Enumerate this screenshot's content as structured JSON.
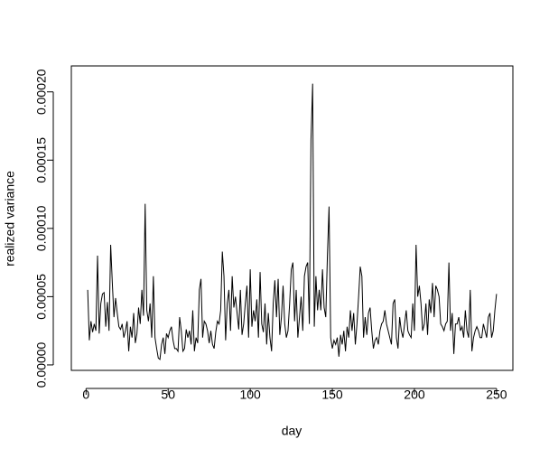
{
  "chart_data": {
    "type": "line",
    "xlabel": "day",
    "ylabel": "realized variance",
    "color": "#000000",
    "xlim": [
      -8.96,
      259.96
    ],
    "ylim": [
      -4e-06,
      0.000219
    ],
    "xticks": [
      0,
      50,
      100,
      150,
      200,
      250
    ],
    "yticks": [
      {
        "value": 0,
        "label": "0.00000"
      },
      {
        "value": 5e-05,
        "label": "0.00005"
      },
      {
        "value": 0.0001,
        "label": "0.00010"
      },
      {
        "value": 0.00015,
        "label": "0.00015"
      },
      {
        "value": 0.0002,
        "label": "0.00020"
      }
    ],
    "x": [
      1,
      2,
      3,
      4,
      5,
      6,
      7,
      8,
      9,
      10,
      11,
      12,
      13,
      14,
      15,
      16,
      17,
      18,
      19,
      20,
      21,
      22,
      23,
      24,
      25,
      26,
      27,
      28,
      29,
      30,
      31,
      32,
      33,
      34,
      35,
      36,
      37,
      38,
      39,
      40,
      41,
      42,
      43,
      44,
      45,
      46,
      47,
      48,
      49,
      50,
      51,
      52,
      53,
      54,
      55,
      56,
      57,
      58,
      59,
      60,
      61,
      62,
      63,
      64,
      65,
      66,
      67,
      68,
      69,
      70,
      71,
      72,
      73,
      74,
      75,
      76,
      77,
      78,
      79,
      80,
      81,
      82,
      83,
      84,
      85,
      86,
      87,
      88,
      89,
      90,
      91,
      92,
      93,
      94,
      95,
      96,
      97,
      98,
      99,
      100,
      101,
      102,
      103,
      104,
      105,
      106,
      107,
      108,
      109,
      110,
      111,
      112,
      113,
      114,
      115,
      116,
      117,
      118,
      119,
      120,
      121,
      122,
      123,
      124,
      125,
      126,
      127,
      128,
      129,
      130,
      131,
      132,
      133,
      134,
      135,
      136,
      137,
      138,
      139,
      140,
      141,
      142,
      143,
      144,
      145,
      146,
      147,
      148,
      149,
      150,
      151,
      152,
      153,
      154,
      155,
      156,
      157,
      158,
      159,
      160,
      161,
      162,
      163,
      164,
      165,
      166,
      167,
      168,
      169,
      170,
      171,
      172,
      173,
      174,
      175,
      176,
      177,
      178,
      179,
      180,
      181,
      182,
      183,
      184,
      185,
      186,
      187,
      188,
      189,
      190,
      191,
      192,
      193,
      194,
      195,
      196,
      197,
      198,
      199,
      200,
      201,
      202,
      203,
      204,
      205,
      206,
      207,
      208,
      209,
      210,
      211,
      212,
      213,
      214,
      215,
      216,
      217,
      218,
      219,
      220,
      221,
      222,
      223,
      224,
      225,
      226,
      227,
      228,
      229,
      230,
      231,
      232,
      233,
      234,
      235,
      236,
      237,
      238,
      239,
      240,
      241,
      242,
      243,
      244,
      245,
      246,
      247,
      248,
      249,
      250
    ],
    "values": [
      5.5e-05,
      1.8e-05,
      3.2e-05,
      2.4e-05,
      3e-05,
      2.5e-05,
      8e-05,
      2.3e-05,
      4.5e-05,
      5.2e-05,
      5.3e-05,
      2.8e-05,
      4.6e-05,
      2.5e-05,
      8.8e-05,
      6e-05,
      3.5e-05,
      4.9e-05,
      3.8e-05,
      2.8e-05,
      2.6e-05,
      3e-05,
      2e-05,
      2.5e-05,
      3.2e-05,
      1e-05,
      2.8e-05,
      2e-05,
      3.8e-05,
      1.6e-05,
      2.3e-05,
      4.2e-05,
      3e-05,
      5.5e-05,
      3.6e-05,
      0.000118,
      4e-05,
      3.2e-05,
      4.5e-05,
      2e-05,
      6.5e-05,
      2e-05,
      1.2e-05,
      5e-06,
      4e-06,
      1.5e-05,
      2e-05,
      8e-06,
      2.3e-05,
      2e-05,
      2.5e-05,
      2.8e-05,
      1.8e-05,
      1.2e-05,
      1.2e-05,
      1e-05,
      3.5e-05,
      2.5e-05,
      1e-05,
      1.2e-05,
      2.6e-05,
      2e-05,
      2.5e-05,
      1.5e-05,
      4e-05,
      1e-05,
      2e-05,
      1.6e-05,
      5.5e-05,
      6.3e-05,
      2e-05,
      3.2e-05,
      3e-05,
      2.5e-05,
      1.6e-05,
      2.5e-05,
      1.5e-05,
      1.2e-05,
      2.4e-05,
      3.2e-05,
      3e-05,
      4e-05,
      8.3e-05,
      6.5e-05,
      1.8e-05,
      4.5e-05,
      5.5e-05,
      2.5e-05,
      6.5e-05,
      4.2e-05,
      5e-05,
      3.8e-05,
      2.6e-05,
      5.5e-05,
      2.2e-05,
      3e-05,
      4.5e-05,
      5.8e-05,
      2e-05,
      7e-05,
      2.8e-05,
      4e-05,
      3.2e-05,
      4.8e-05,
      2e-05,
      6.8e-05,
      3e-05,
      2.4e-05,
      4.5e-05,
      1.5e-05,
      3.8e-05,
      2e-05,
      1e-05,
      4.5e-05,
      6.2e-05,
      3.5e-05,
      6.3e-05,
      2.2e-05,
      3.5e-05,
      5.8e-05,
      3e-05,
      2e-05,
      2.5e-05,
      4.5e-05,
      7e-05,
      7.5e-05,
      3.2e-05,
      5.5e-05,
      2e-05,
      3.5e-05,
      5e-05,
      2.5e-05,
      6.5e-05,
      7.2e-05,
      7.5e-05,
      3e-05,
      0.000165,
      0.000206,
      2.8e-05,
      6.5e-05,
      4e-05,
      5.5e-05,
      4e-05,
      7e-05,
      4.2e-05,
      3.5e-05,
      8e-05,
      0.000116,
      2e-05,
      1.2e-05,
      1.8e-05,
      1.5e-05,
      2e-05,
      6e-06,
      2.2e-05,
      1.5e-05,
      2.5e-05,
      1e-05,
      2.8e-05,
      2e-05,
      4e-05,
      2.5e-05,
      3.8e-05,
      1.5e-05,
      3e-05,
      5e-05,
      7.2e-05,
      6.5e-05,
      2e-05,
      3.5e-05,
      2.2e-05,
      3.8e-05,
      4.2e-05,
      2.5e-05,
      1.2e-05,
      1.8e-05,
      2e-05,
      1.5e-05,
      2.5e-05,
      3e-05,
      3.2e-05,
      4e-05,
      3e-05,
      2.5e-05,
      2e-05,
      1.5e-05,
      4.5e-05,
      4.8e-05,
      2e-05,
      1.2e-05,
      3.5e-05,
      2.5e-05,
      2e-05,
      3e-05,
      4e-05,
      2.5e-05,
      2.2e-05,
      2e-05,
      4.5e-05,
      2.5e-05,
      8.8e-05,
      5e-05,
      5.8e-05,
      4.5e-05,
      2.5e-05,
      3e-05,
      4.5e-05,
      2.2e-05,
      4.8e-05,
      3.8e-05,
      6e-05,
      3.5e-05,
      5.8e-05,
      5.5e-05,
      5e-05,
      3e-05,
      2.8e-05,
      2.5e-05,
      3e-05,
      3.2e-05,
      7.5e-05,
      2.5e-05,
      3.8e-05,
      8e-06,
      3e-05,
      3e-05,
      3.5e-05,
      2.5e-05,
      2.8e-05,
      2e-05,
      4e-05,
      2.5e-05,
      2e-05,
      5.5e-05,
      1e-05,
      2e-05,
      2.5e-05,
      2.8e-05,
      2.5e-05,
      2e-05,
      2e-05,
      3e-05,
      2.5e-05,
      2e-05,
      3.5e-05,
      3.8e-05,
      2e-05,
      2.5e-05,
      4e-05,
      5.2e-05
    ]
  }
}
